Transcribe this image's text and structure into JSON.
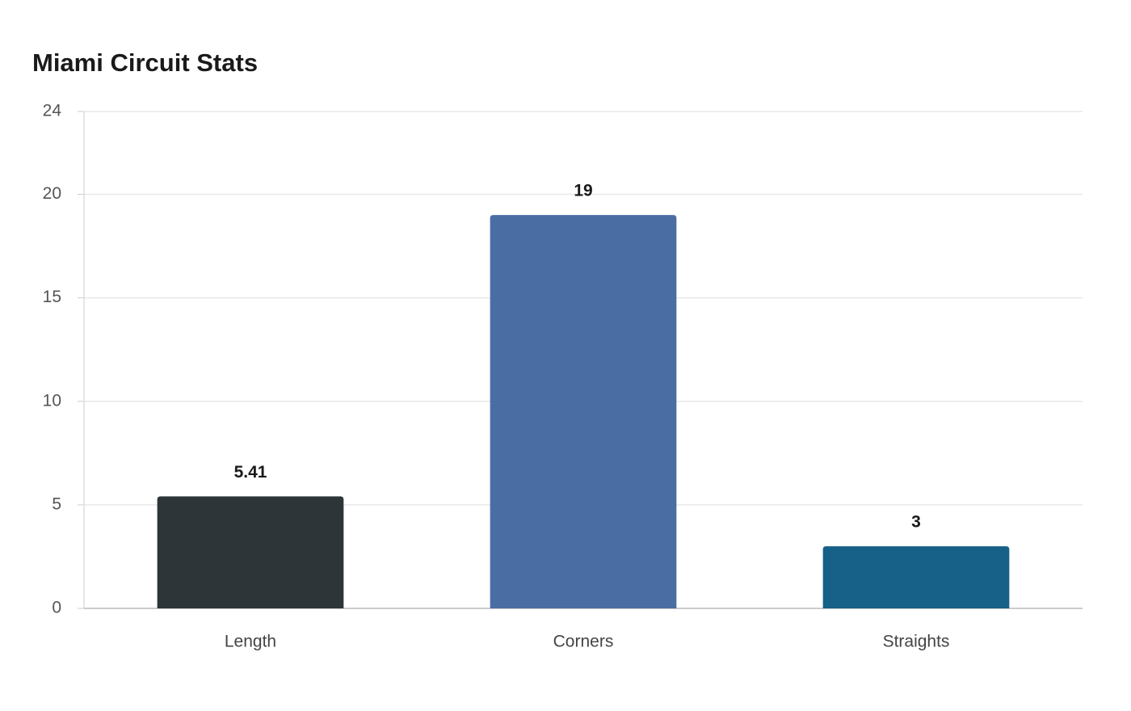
{
  "chart_data": {
    "type": "bar",
    "title": "Miami Circuit Stats",
    "categories": [
      "Length",
      "Corners",
      "Straights"
    ],
    "values": [
      5.41,
      19,
      3
    ],
    "colors": [
      "#2e3538",
      "#4a6ea3",
      "#176087"
    ],
    "ylim": [
      0,
      24
    ],
    "yticks": [
      0,
      5,
      10,
      15,
      20,
      24
    ],
    "grid": true
  }
}
